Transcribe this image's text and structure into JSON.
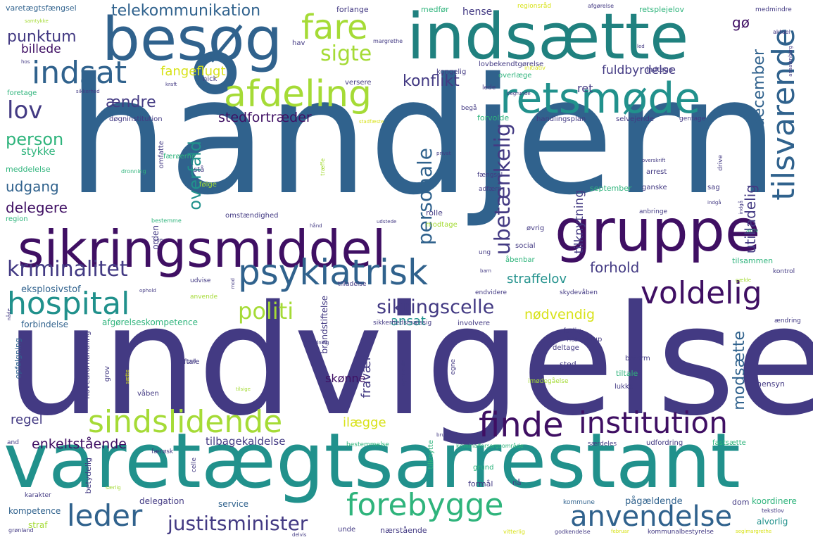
{
  "palette": {
    "purple": "#3f0f63",
    "indigo": "#433a83",
    "blue": "#30628d",
    "teal": "#21918c",
    "green": "#2fb47c",
    "lime": "#a5db36",
    "yellow": "#d8e219"
  },
  "words": {
    "handjern": "håndjern",
    "undvigelse": "undvigelse",
    "varetaegtsarrestant": "varetægtsarrestant",
    "besog": "besøg",
    "indsaette": "indsætte",
    "sikringsmiddel": "sikringsmiddel",
    "gruppe": "gruppe",
    "retsmode": "retsmøde",
    "afdeling": "afdeling",
    "indsat": "indsat",
    "fare": "fare",
    "psykiatrisk": "psykiatrisk",
    "hospital": "hospital",
    "voldelig": "voldelig",
    "tilsvarende": "tilsvarende",
    "sindslidende": "sindslidende",
    "finde": "finde",
    "institution": "institution",
    "forebygge": "forebygge",
    "anvendelse": "anvendelse",
    "leder": "leder",
    "justitsminister": "justitsminister",
    "lov": "lov",
    "sigte": "sigte",
    "kriminalitet": "kriminalitet",
    "politi": "politi",
    "sikringscelle": "sikringscelle",
    "ubetaenkelig": "ubetænkelig",
    "personale": "personale",
    "telekommunikation": "telekommunikation",
    "punktum": "punktum",
    "billede": "billede",
    "person": "person",
    "aendre": "ændre",
    "konflikt": "konflikt",
    "fangeflugt": "fangeflugt",
    "fuldbyrdelse": "fuldbyrdelse",
    "december": "december",
    "stedfortraeder": "stedfortræder",
    "straffelov": "straffelov",
    "nodvendig": "nødvendig",
    "forhold": "forhold",
    "udgang": "udgang",
    "delegere": "delegere",
    "overfald": "overfald",
    "modsaette": "modsætte",
    "ansat": "ansat",
    "regel": "regel",
    "enkeltstaaende": "enkeltstående",
    "tilbagekaldelse": "tilbagekaldelse",
    "ilaegge": "ilægge",
    "skonne": "skønne",
    "fravaer": "fravær",
    "utilladelig": "utilladelig",
    "tilknytning": "tilknytning",
    "stykke": "stykke",
    "meddelelse": "meddelelse",
    "go": "gø",
    "ret": "ret",
    "hense": "hense",
    "eksplosivstof": "eksplosivstof",
    "forbindelse": "forbindelse",
    "afgorelseskompetence": "afgørelseskompetence",
    "kompetence": "kompetence",
    "delegation": "delegation",
    "service": "service",
    "paagaeldende": "pågældende",
    "koordinere": "koordinere",
    "alvorlig": "alvorlig",
    "dom": "dom",
    "naerstaaende": "nærstående",
    "straf": "straf",
    "vaarn": "varetægtsfængsel",
    "forlange": "forlange",
    "medfor": "medfør",
    "regionsraad": "regionsråd",
    "afgorelse": "afgørelse",
    "retsplejelov": "retsplejelov",
    "medmindre": "medmindre",
    "aktuel": "aktuel",
    "samtykke": "samtykke",
    "hav": "hav",
    "margrethe": "margrethe",
    "lovbekendtgorelse": "lovbekendtgørelse",
    "initiativ": "initiativ",
    "kongelig": "kongelig",
    "nick": "nick",
    "overlaege": "overlæge",
    "indtage": "indtage",
    "versere": "versere",
    "lede": "lede",
    "foretage": "foretage",
    "sikkerhed": "sikkerhed",
    "kraft": "kraft",
    "begaa": "begå",
    "dognginstitution": "døgninstitution",
    "forvolde": "forvolde",
    "handlingsplan": "handlingsplan",
    "selvejende": "selvejende",
    "gentage": "gentage",
    "stadfaeste": "stadfæste",
    "faeroerne": "færøerne",
    "omfatte": "omfatte",
    "dronning": "dronning",
    "privat": "privat",
    "fangsel": "fængsel",
    "arrest": "arrest",
    "drive": "drive",
    "staa": "stå",
    "folge": "følge",
    "traeffe": "træffe",
    "adfaerd": "adfærd",
    "september": "september",
    "ganske": "ganske",
    "sag": "sag",
    "orden": "orden",
    "region": "region",
    "bestemme": "bestemme",
    "omstaendighed": "omstændighed",
    "rolle": "rolle",
    "modtage": "modtage",
    "anbringe": "anbringe",
    "ovrig": "øvrig",
    "social": "social",
    "ung": "ung",
    "aabenbar": "åbenbar",
    "tilsammen": "tilsammen",
    "kontrol": "kontrol",
    "udvise": "udvise",
    "anvende": "anvende",
    "tilladelse": "tilladelse",
    "endvidere": "endvidere",
    "skydevaaben": "skydevåben",
    "involvere": "involvere",
    "farlig": "farlig",
    "sikkerhedsmaessig": "sikkerhedsmæssig",
    "aendring": "ændring",
    "haekkerup": "hækkerup",
    "deltage": "deltage",
    "boform": "boform",
    "sted": "sted",
    "tiltale": "tiltale",
    "lukke": "lukke",
    "hensyn": "hensyn",
    "imodegaaelse": "imødegåelse",
    "brandstiftelse": "brandstiftelse",
    "optraede": "optræde",
    "egne": "egne",
    "hovedforhandling": "hovedforhandling",
    "opfolgning": "opfølgning",
    "grov": "grov",
    "vaaben": "våben",
    "bestemmelse": "bestemmelse",
    "kriminalforsorgsomraade": "kriminalforsorgsområde",
    "udfordring": "udfordring",
    "fastsaette": "fastsætte",
    "saerdeles": "særdeles",
    "farosk": "færøsk",
    "and": "and",
    "tilknytte": "tilknytte",
    "grund": "grund",
    "formaal": "formål",
    "naa": "nå",
    "kommune": "kommune",
    "betydelig": "betydelig",
    "celle": "celle",
    "karakter": "karakter",
    "unde": "unde",
    "grenland": "grønland",
    "kommunalbestyrelse": "kommunalbestyrelse",
    "segimargrethe": "segimargrethe",
    "godkendelse": "godkendelse",
    "vitterlig": "vitterlig",
    "februar": "februar",
    "tekstlov": "tekstlov",
    "delvis": "delvis",
    "hos": "hos",
    "led": "led",
    "begrunde": "begrunde",
    "anaaienborg": "anaaienborg",
    "overskrift": "overskrift",
    "aktiv": "aktiv",
    "indgaa": "indgå",
    "udstede": "udstede",
    "haand": "hånd",
    "uge": "uge",
    "barn": "barn",
    "opholde": "ophold",
    "gaelde": "gælde",
    "naede": "nåde",
    "anordning": "anordning",
    "aftale": "aftale",
    "gud": "gud",
    "saette": "sætte",
    "tilsige": "tilsige",
    "brug": "brug",
    "saerlig": "særlig",
    "mod": "mod",
    "forlig": "forlig"
  }
}
